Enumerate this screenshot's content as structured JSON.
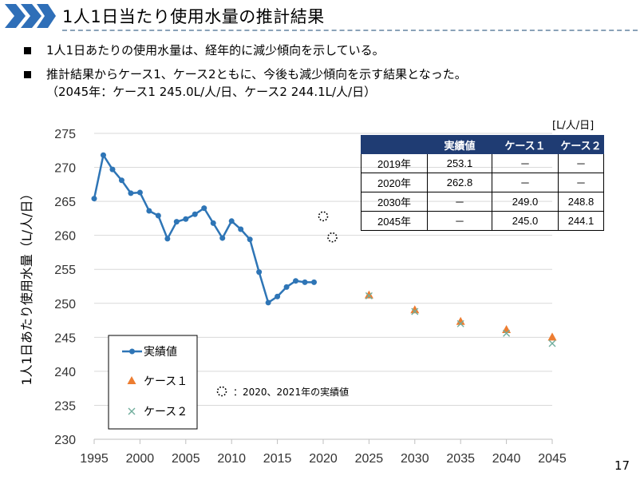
{
  "slide": {
    "title": "1人1日当たり使用水量の推計結果",
    "bullets": [
      "1人1日あたりの使用水量は、経年的に減少傾向を示している。",
      "推計結果からケース1、ケース2ともに、今後も減少傾向を示す結果となった。",
      "（2045年：ケース1 245.0L/人/日、ケース2 244.1L/人/日）"
    ],
    "page_number": "17",
    "unit_label": "[L/人/日]",
    "colors": {
      "header_chevron": "#2f6fb8",
      "table_header": "#1f3c73"
    }
  },
  "table": {
    "headers": [
      "",
      "実績値",
      "ケース１",
      "ケース２"
    ],
    "rows": [
      [
        "2019年",
        "253.1",
        "－",
        "－"
      ],
      [
        "2020年",
        "262.8",
        "－",
        "－"
      ],
      [
        "2030年",
        "－",
        "249.0",
        "248.8"
      ],
      [
        "2045年",
        "－",
        "245.0",
        "244.1"
      ]
    ]
  },
  "chart_data": {
    "type": "line",
    "ylabel": "1人1日あたり使用水量（L/人/日）",
    "xlabel": "",
    "xlim": [
      1995,
      2045
    ],
    "ylim": [
      230,
      275
    ],
    "x_ticks": [
      "1995",
      "2000",
      "2005",
      "2010",
      "2015",
      "2020",
      "2025",
      "2030",
      "2035",
      "2040",
      "2045"
    ],
    "y_ticks": [
      "230",
      "235",
      "240",
      "245",
      "250",
      "255",
      "260",
      "265",
      "270",
      "275"
    ],
    "grid": "horizontal",
    "legend_position": "bottom-left",
    "series": [
      {
        "name": "実績値",
        "marker": "circle",
        "color": "#2e75b6",
        "points": [
          [
            1995,
            265.4
          ],
          [
            1996,
            271.8
          ],
          [
            1997,
            269.7
          ],
          [
            1998,
            268.1
          ],
          [
            1999,
            266.2
          ],
          [
            2000,
            266.3
          ],
          [
            2001,
            263.6
          ],
          [
            2002,
            262.9
          ],
          [
            2003,
            259.5
          ],
          [
            2004,
            262.0
          ],
          [
            2005,
            262.4
          ],
          [
            2006,
            263.1
          ],
          [
            2007,
            264.0
          ],
          [
            2008,
            261.8
          ],
          [
            2009,
            259.6
          ],
          [
            2010,
            262.1
          ],
          [
            2011,
            260.9
          ],
          [
            2012,
            259.4
          ],
          [
            2013,
            254.6
          ],
          [
            2014,
            250.1
          ],
          [
            2015,
            251.0
          ],
          [
            2016,
            252.4
          ],
          [
            2017,
            253.3
          ],
          [
            2018,
            253.1
          ],
          [
            2019,
            253.1
          ]
        ]
      },
      {
        "name": "ケース１",
        "marker": "triangle",
        "color": "#ed7d31",
        "points": [
          [
            2025,
            251.2
          ],
          [
            2030,
            249.0
          ],
          [
            2035,
            247.3
          ],
          [
            2040,
            246.1
          ],
          [
            2045,
            245.0
          ]
        ]
      },
      {
        "name": "ケース２",
        "marker": "x",
        "color": "#70ad9c",
        "points": [
          [
            2025,
            251.1
          ],
          [
            2030,
            248.8
          ],
          [
            2035,
            247.0
          ],
          [
            2040,
            245.6
          ],
          [
            2045,
            244.1
          ]
        ]
      },
      {
        "name": "2020、2021年の実績値",
        "marker": "dotted-circle",
        "color": "#000000",
        "points": [
          [
            2020,
            262.8
          ],
          [
            2021,
            259.7
          ]
        ]
      }
    ],
    "annotation": "：2020、2021年の実績値"
  }
}
